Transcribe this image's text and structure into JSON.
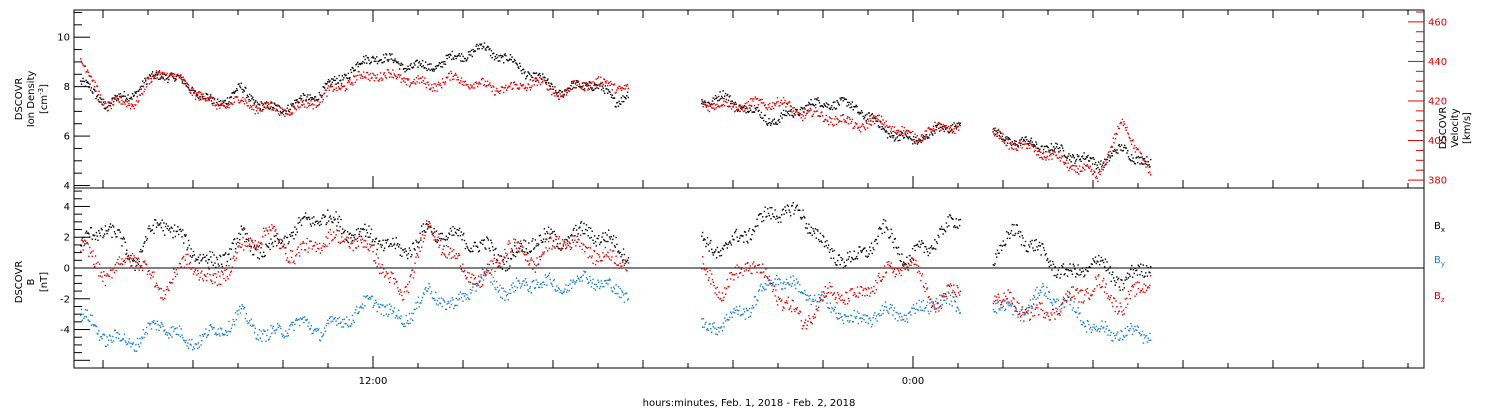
{
  "chart_data": [
    {
      "type": "scatter",
      "panel": "top",
      "ylabel": [
        "DSCOVR",
        "Ion Density",
        "[cm",
        "-3",
        "]"
      ],
      "y2label": [
        "DSCOVR",
        "Velocity",
        "[km/s]"
      ],
      "ylim": [
        3.9,
        11.1
      ],
      "y2lim": [
        376,
        466
      ],
      "yticks": [
        "4",
        "6",
        "8",
        "10"
      ],
      "y2ticks": [
        "380",
        "400",
        "420",
        "440",
        "460"
      ],
      "series": [
        {
          "axis": "left",
          "color": "#000000",
          "anchors": [
            [
              0,
              8.2
            ],
            [
              1,
              7.3
            ],
            [
              2,
              7.8
            ],
            [
              3,
              8.6
            ],
            [
              4,
              8.1
            ],
            [
              5,
              7.3
            ],
            [
              6,
              7.9
            ],
            [
              7,
              7.1
            ],
            [
              8,
              7.3
            ],
            [
              9,
              7.8
            ],
            [
              10,
              8.6
            ],
            [
              11,
              9.3
            ],
            [
              12,
              8.9
            ],
            [
              13,
              8.8
            ],
            [
              14,
              9.2
            ],
            [
              15,
              9.6
            ],
            [
              16,
              9.1
            ],
            [
              17,
              8.4
            ],
            [
              18,
              7.8
            ],
            [
              19,
              8.2
            ],
            [
              20,
              7.5
            ],
            [
              21,
              7.9
            ],
            [
              22,
              7.1
            ],
            [
              23,
              7.4
            ],
            [
              24,
              7.6
            ],
            [
              25,
              7.1
            ],
            [
              26,
              6.6
            ],
            [
              27,
              7.2
            ],
            [
              28,
              7.4
            ],
            [
              29,
              7.2
            ],
            [
              30,
              6.3
            ],
            [
              31,
              5.8
            ],
            [
              32,
              6.2
            ],
            [
              33,
              6.7
            ],
            [
              34,
              6.1
            ],
            [
              35,
              5.8
            ],
            [
              36,
              5.6
            ],
            [
              37,
              5.3
            ],
            [
              38,
              4.9
            ],
            [
              39,
              5.5
            ],
            [
              40,
              4.8
            ]
          ],
          "gaps": [
            [
              20.5,
              23.2
            ],
            [
              32.9,
              34.1
            ]
          ]
        },
        {
          "axis": "right",
          "color": "#e60000",
          "anchors": [
            [
              0,
              440
            ],
            [
              1,
              418
            ],
            [
              2,
              420
            ],
            [
              3,
              436
            ],
            [
              4,
              428
            ],
            [
              5,
              418
            ],
            [
              6,
              420
            ],
            [
              7,
              416
            ],
            [
              8,
              416
            ],
            [
              9,
              422
            ],
            [
              10,
              430
            ],
            [
              11,
              434
            ],
            [
              12,
              432
            ],
            [
              13,
              428
            ],
            [
              14,
              432
            ],
            [
              15,
              428
            ],
            [
              16,
              426
            ],
            [
              17,
              430
            ],
            [
              18,
              424
            ],
            [
              19,
              430
            ],
            [
              20,
              428
            ],
            [
              21,
              426
            ],
            [
              22,
              422
            ],
            [
              23,
              420
            ],
            [
              24,
              418
            ],
            [
              25,
              418
            ],
            [
              26,
              420
            ],
            [
              27,
              414
            ],
            [
              28,
              412
            ],
            [
              29,
              408
            ],
            [
              30,
              410
            ],
            [
              31,
              402
            ],
            [
              32,
              406
            ],
            [
              33,
              408
            ],
            [
              34,
              404
            ],
            [
              35,
              398
            ],
            [
              36,
              394
            ],
            [
              37,
              388
            ],
            [
              38,
              382
            ],
            [
              39,
              410
            ],
            [
              40,
              382
            ]
          ],
          "gaps": [
            [
              20.5,
              23.2
            ],
            [
              32.9,
              34.1
            ]
          ]
        }
      ]
    },
    {
      "type": "scatter",
      "panel": "bottom",
      "ylabel": [
        "DSCOVR",
        "B",
        "[nT]"
      ],
      "ylim": [
        -6.5,
        5.2
      ],
      "yticks": [
        "-4",
        "-2",
        "0",
        "2",
        "4"
      ],
      "legend": [
        "B",
        "B",
        "B"
      ],
      "legend_subscripts": [
        "x",
        "y",
        "z"
      ],
      "series": [
        {
          "name": "Bx",
          "color": "#000000",
          "anchors": [
            [
              0,
              1.5
            ],
            [
              1,
              2.8
            ],
            [
              2,
              0.5
            ],
            [
              3,
              3.2
            ],
            [
              4,
              1.5
            ],
            [
              5,
              0.2
            ],
            [
              6,
              2.0
            ],
            [
              7,
              1.0
            ],
            [
              8,
              2.5
            ],
            [
              9,
              3.5
            ],
            [
              10,
              2.5
            ],
            [
              11,
              2.0
            ],
            [
              12,
              1.0
            ],
            [
              13,
              2.5
            ],
            [
              14,
              2.0
            ],
            [
              15,
              1.5
            ],
            [
              16,
              0.5
            ],
            [
              17,
              2.0
            ],
            [
              18,
              1.8
            ],
            [
              19,
              2.5
            ],
            [
              20,
              1.5
            ],
            [
              21,
              0.5
            ],
            [
              22,
              1.0
            ],
            [
              23,
              1.8
            ],
            [
              24,
              1.2
            ],
            [
              25,
              2.5
            ],
            [
              26,
              3.8
            ],
            [
              27,
              3.5
            ],
            [
              28,
              1.0
            ],
            [
              29,
              0.5
            ],
            [
              30,
              2.5
            ],
            [
              31,
              0.5
            ],
            [
              32,
              2.0
            ],
            [
              33,
              3.5
            ],
            [
              34,
              0.5
            ],
            [
              35,
              2.5
            ],
            [
              36,
              0.8
            ],
            [
              37,
              -0.5
            ],
            [
              38,
              0.5
            ],
            [
              39,
              -1.0
            ],
            [
              40,
              0.5
            ]
          ],
          "gaps": [
            [
              20.5,
              23.2
            ],
            [
              32.9,
              34.1
            ]
          ]
        },
        {
          "name": "By",
          "color": "#1a7fd4",
          "anchors": [
            [
              0,
              -3.0
            ],
            [
              1,
              -4.5
            ],
            [
              2,
              -4.8
            ],
            [
              3,
              -3.5
            ],
            [
              4,
              -4.8
            ],
            [
              5,
              -4.2
            ],
            [
              6,
              -3.0
            ],
            [
              7,
              -4.5
            ],
            [
              8,
              -3.5
            ],
            [
              9,
              -4.0
            ],
            [
              10,
              -3.2
            ],
            [
              11,
              -2.0
            ],
            [
              12,
              -3.5
            ],
            [
              13,
              -1.5
            ],
            [
              14,
              -2.5
            ],
            [
              15,
              -0.5
            ],
            [
              16,
              -1.5
            ],
            [
              17,
              -0.8
            ],
            [
              18,
              -1.2
            ],
            [
              19,
              -0.5
            ],
            [
              20,
              -1.5
            ],
            [
              21,
              -1.5
            ],
            [
              22,
              -2.5
            ],
            [
              23,
              -4.0
            ],
            [
              24,
              -3.5
            ],
            [
              25,
              -2.5
            ],
            [
              26,
              -0.5
            ],
            [
              27,
              -1.5
            ],
            [
              28,
              -2.5
            ],
            [
              29,
              -3.5
            ],
            [
              30,
              -2.8
            ],
            [
              31,
              -3.0
            ],
            [
              32,
              -2.0
            ],
            [
              33,
              -2.5
            ],
            [
              34,
              -2.0
            ],
            [
              35,
              -3.0
            ],
            [
              36,
              -1.5
            ],
            [
              37,
              -2.5
            ],
            [
              38,
              -4.0
            ],
            [
              39,
              -4.2
            ],
            [
              40,
              -4.3
            ]
          ],
          "gaps": [
            [
              20.5,
              23.2
            ],
            [
              32.9,
              34.1
            ]
          ]
        },
        {
          "name": "Bz",
          "color": "#e60000",
          "anchors": [
            [
              0,
              1.5
            ],
            [
              1,
              -0.5
            ],
            [
              2,
              1.0
            ],
            [
              3,
              -1.5
            ],
            [
              4,
              0.5
            ],
            [
              5,
              -1.0
            ],
            [
              6,
              1.2
            ],
            [
              7,
              2.5
            ],
            [
              8,
              0.8
            ],
            [
              9,
              1.8
            ],
            [
              10,
              2.0
            ],
            [
              11,
              1.0
            ],
            [
              12,
              -2.0
            ],
            [
              13,
              2.8
            ],
            [
              14,
              0.5
            ],
            [
              15,
              -1.0
            ],
            [
              16,
              1.5
            ],
            [
              17,
              0.5
            ],
            [
              18,
              2.0
            ],
            [
              19,
              1.2
            ],
            [
              20,
              0.5
            ],
            [
              21,
              0.5
            ],
            [
              22,
              1.0
            ],
            [
              23,
              0.5
            ],
            [
              24,
              -1.5
            ],
            [
              25,
              0.5
            ],
            [
              26,
              -1.5
            ],
            [
              27,
              -3.5
            ],
            [
              28,
              -1.5
            ],
            [
              29,
              -2.0
            ],
            [
              30,
              -0.5
            ],
            [
              31,
              0.5
            ],
            [
              32,
              -2.5
            ],
            [
              33,
              -1.0
            ],
            [
              34,
              -1.5
            ],
            [
              35,
              -2.5
            ],
            [
              36,
              -3.0
            ],
            [
              37,
              -2.0
            ],
            [
              38,
              -1.0
            ],
            [
              39,
              -2.5
            ],
            [
              40,
              -0.5
            ]
          ],
          "gaps": [
            [
              20.5,
              23.2
            ],
            [
              32.9,
              34.1
            ]
          ]
        }
      ]
    }
  ],
  "x_axis": {
    "label": "hours:minutes, Feb.  1, 2018 - Feb.  2, 2018",
    "ticks": [
      "12:00",
      "0:00"
    ]
  },
  "colors": {
    "axis": "#000000",
    "right_axis": "#e60000"
  }
}
